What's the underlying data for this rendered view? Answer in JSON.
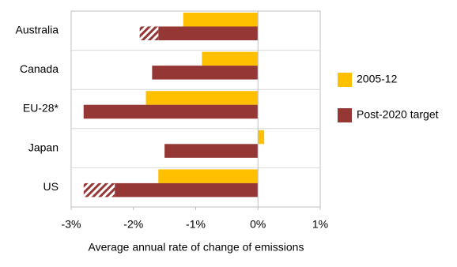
{
  "chart_data": {
    "type": "hbar",
    "x_label": "Average annual rate of change of emissions",
    "categories": [
      "Australia",
      "Canada",
      "EU-28*",
      "Japan",
      "US"
    ],
    "series": [
      {
        "name": "2005-12",
        "color": "#ffc000",
        "values": [
          -1.2,
          -0.9,
          -1.8,
          0.1,
          -1.6
        ]
      },
      {
        "name": "Post-2020 target",
        "color": "#953735",
        "values": [
          -1.6,
          -1.7,
          -2.8,
          -1.5,
          -2.3
        ],
        "range_values": [
          -1.9,
          null,
          null,
          null,
          -2.8
        ]
      }
    ],
    "xlim": [
      -3,
      1
    ],
    "xticks": [
      {
        "value": -3,
        "label": "-3%"
      },
      {
        "value": -2,
        "label": "-2%"
      },
      {
        "value": -1,
        "label": "-1%"
      },
      {
        "value": 0,
        "label": "0%"
      },
      {
        "value": 1,
        "label": "1%"
      }
    ],
    "legend": "right"
  }
}
